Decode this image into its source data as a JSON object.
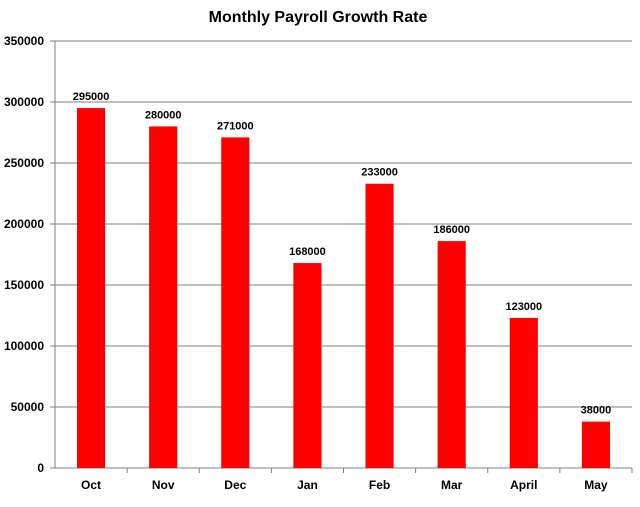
{
  "colors": {
    "bar": "#ff0000",
    "gridline": "#808080",
    "axis": "#808080",
    "text": "#000000",
    "background": "#ffffff"
  },
  "chart_data": {
    "type": "bar",
    "title": "Monthly Payroll Growth Rate",
    "xlabel": "",
    "ylabel": "",
    "categories": [
      "Oct",
      "Nov",
      "Dec",
      "Jan",
      "Feb",
      "Mar",
      "April",
      "May"
    ],
    "values": [
      295000,
      280000,
      271000,
      168000,
      233000,
      186000,
      123000,
      38000
    ],
    "data_labels": [
      "295000",
      "280000",
      "271000",
      "168000",
      "233000",
      "186000",
      "123000",
      "38000"
    ],
    "ylim": [
      0,
      350000
    ],
    "y_ticks": [
      0,
      50000,
      100000,
      150000,
      200000,
      250000,
      300000,
      350000
    ],
    "y_tick_labels": [
      "0",
      "50000",
      "100000",
      "150000",
      "200000",
      "250000",
      "300000",
      "350000"
    ],
    "grid": true,
    "legend": "none"
  }
}
